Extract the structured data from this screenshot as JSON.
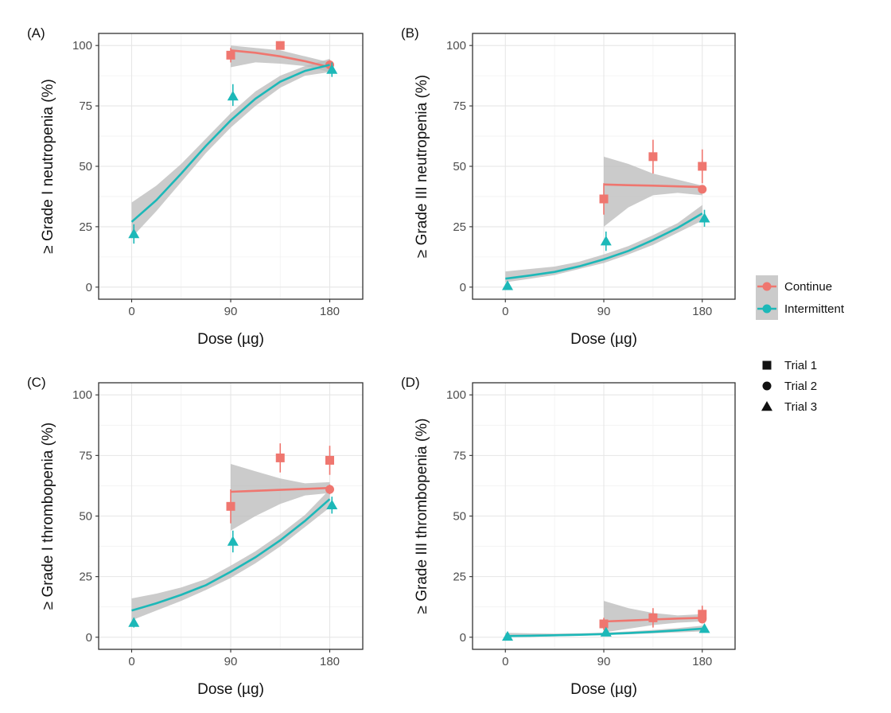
{
  "colors": {
    "continue": "#ef766f",
    "intermittent": "#1cb8b8",
    "ribbon": "#b9b9b9"
  },
  "legend": {
    "group_items": [
      {
        "label": "Continue",
        "key": "continue"
      },
      {
        "label": "Intermittent",
        "key": "intermittent"
      }
    ],
    "shape_items": [
      {
        "label": "Trial 1",
        "shape": "square"
      },
      {
        "label": "Trial 2",
        "shape": "circle"
      },
      {
        "label": "Trial 3",
        "shape": "triangle"
      }
    ]
  },
  "chart_data": [
    {
      "type": "scatter",
      "panel": "(A)",
      "xlabel": "Dose (µg)",
      "ylabel": "≥ Grade I neutropenia (%)",
      "x_ticks": [
        0,
        90,
        180
      ],
      "y_ticks": [
        0,
        25,
        50,
        75,
        100
      ],
      "xlim": [
        -30,
        210
      ],
      "ylim": [
        -5,
        105
      ],
      "series": [
        {
          "name": "Continue",
          "color_key": "continue",
          "fit": {
            "x": [
              90,
              112.5,
              135,
              157.5,
              180
            ],
            "y": [
              98,
              97,
              95.5,
              93.5,
              91
            ]
          },
          "ribbon": {
            "lower": [
              91,
              93,
              92.5,
              91.5,
              89
            ],
            "upper": [
              100,
              99,
              98,
              95.5,
              93
            ]
          },
          "points": [
            {
              "x": 90,
              "y": 96,
              "shape": "square",
              "err": [
                93,
                99
              ]
            },
            {
              "x": 135,
              "y": 100,
              "shape": "square",
              "err": [
                99,
                100
              ]
            },
            {
              "x": 180,
              "y": 92,
              "shape": "circle",
              "err": [
                90,
                94
              ]
            }
          ]
        },
        {
          "name": "Intermittent",
          "color_key": "intermittent",
          "fit": {
            "x": [
              0,
              22.5,
              45,
              67.5,
              90,
              112.5,
              135,
              157.5,
              180
            ],
            "y": [
              27,
              36,
              47,
              58.5,
              69,
              78,
              85,
              89.5,
              92
            ]
          },
          "ribbon": {
            "lower": [
              20.5,
              31.5,
              43.5,
              55.5,
              66,
              75,
              82.5,
              87.5,
              89
            ],
            "upper": [
              35,
              42,
              51,
              61.5,
              72,
              81,
              87.5,
              91.5,
              94.5
            ]
          },
          "points": [
            {
              "x": 2,
              "y": 22,
              "shape": "triangle",
              "err": [
                18,
                26
              ]
            },
            {
              "x": 92,
              "y": 79,
              "shape": "triangle",
              "err": [
                75,
                84
              ]
            },
            {
              "x": 182,
              "y": 90,
              "shape": "triangle",
              "err": [
                87,
                93
              ]
            }
          ]
        }
      ]
    },
    {
      "type": "scatter",
      "panel": "(B)",
      "xlabel": "Dose (µg)",
      "ylabel": "≥ Grade III neutropenia (%)",
      "x_ticks": [
        0,
        90,
        180
      ],
      "y_ticks": [
        0,
        25,
        50,
        75,
        100
      ],
      "xlim": [
        -30,
        210
      ],
      "ylim": [
        -5,
        105
      ],
      "series": [
        {
          "name": "Continue",
          "color_key": "continue",
          "fit": {
            "x": [
              90,
              112.5,
              135,
              157.5,
              180
            ],
            "y": [
              42.5,
              42.2,
              42,
              41.7,
              41.4
            ]
          },
          "ribbon": {
            "lower": [
              25,
              33,
              38,
              39,
              38
            ],
            "upper": [
              54,
              51,
              47,
              44.5,
              42
            ]
          },
          "points": [
            {
              "x": 90,
              "y": 36.5,
              "shape": "square",
              "err": [
                30,
                43
              ]
            },
            {
              "x": 135,
              "y": 54,
              "shape": "square",
              "err": [
                47,
                61
              ]
            },
            {
              "x": 180,
              "y": 50,
              "shape": "square",
              "err": [
                43,
                57
              ]
            },
            {
              "x": 180,
              "y": 40.5,
              "shape": "circle",
              "err": [
                39,
                42
              ]
            }
          ]
        },
        {
          "name": "Intermittent",
          "color_key": "intermittent",
          "fit": {
            "x": [
              0,
              22.5,
              45,
              67.5,
              90,
              112.5,
              135,
              157.5,
              180
            ],
            "y": [
              3.5,
              4.8,
              6.3,
              8.6,
              11.5,
              15,
              19.5,
              24.5,
              30.5
            ]
          },
          "ribbon": {
            "lower": [
              2,
              3.5,
              5,
              7.5,
              10,
              13.5,
              17.5,
              22.5,
              27.5
            ],
            "upper": [
              6.5,
              7.5,
              8.5,
              10.5,
              13.5,
              17,
              21.5,
              26.5,
              34
            ]
          },
          "points": [
            {
              "x": 2,
              "y": 0.5,
              "shape": "triangle",
              "err": [
                0,
                2
              ]
            },
            {
              "x": 92,
              "y": 19,
              "shape": "triangle",
              "err": [
                15,
                23
              ]
            },
            {
              "x": 182,
              "y": 28.5,
              "shape": "triangle",
              "err": [
                25,
                32
              ]
            }
          ]
        }
      ]
    },
    {
      "type": "scatter",
      "panel": "(C)",
      "xlabel": "Dose (µg)",
      "ylabel": "≥ Grade I thrombopenia (%)",
      "x_ticks": [
        0,
        90,
        180
      ],
      "y_ticks": [
        0,
        25,
        50,
        75,
        100
      ],
      "xlim": [
        -30,
        210
      ],
      "ylim": [
        -5,
        105
      ],
      "series": [
        {
          "name": "Continue",
          "color_key": "continue",
          "fit": {
            "x": [
              90,
              112.5,
              135,
              157.5,
              180
            ],
            "y": [
              60,
              60.4,
              60.8,
              61.2,
              61.6
            ]
          },
          "ribbon": {
            "lower": [
              44,
              50,
              55,
              58.5,
              59.5
            ],
            "upper": [
              71.5,
              68.5,
              65.5,
              63.5,
              64
            ]
          },
          "points": [
            {
              "x": 90,
              "y": 54,
              "shape": "square",
              "err": [
                47,
                61
              ]
            },
            {
              "x": 135,
              "y": 74,
              "shape": "square",
              "err": [
                68,
                80
              ]
            },
            {
              "x": 180,
              "y": 73,
              "shape": "square",
              "err": [
                67,
                79
              ]
            },
            {
              "x": 180,
              "y": 61,
              "shape": "circle",
              "err": [
                59,
                63
              ]
            }
          ]
        },
        {
          "name": "Intermittent",
          "color_key": "intermittent",
          "fit": {
            "x": [
              0,
              22.5,
              45,
              67.5,
              90,
              112.5,
              135,
              157.5,
              180
            ],
            "y": [
              11,
              14,
              17.5,
              21.5,
              27,
              33,
              40,
              48,
              57
            ]
          },
          "ribbon": {
            "lower": [
              7,
              11,
              15,
              19.5,
              24.5,
              30.5,
              37.5,
              45.5,
              53.5
            ],
            "upper": [
              16,
              18,
              20.5,
              24,
              29.5,
              35.5,
              42.5,
              50.5,
              61
            ]
          },
          "points": [
            {
              "x": 2,
              "y": 6,
              "shape": "triangle",
              "err": [
                4,
                8
              ]
            },
            {
              "x": 92,
              "y": 39.5,
              "shape": "triangle",
              "err": [
                35,
                44
              ]
            },
            {
              "x": 182,
              "y": 54.5,
              "shape": "triangle",
              "err": [
                51,
                58
              ]
            }
          ]
        }
      ]
    },
    {
      "type": "scatter",
      "panel": "(D)",
      "xlabel": "Dose (µg)",
      "ylabel": "≥ Grade III thrombopenia (%)",
      "x_ticks": [
        0,
        90,
        180
      ],
      "y_ticks": [
        0,
        25,
        50,
        75,
        100
      ],
      "xlim": [
        -30,
        210
      ],
      "ylim": [
        -5,
        105
      ],
      "series": [
        {
          "name": "Continue",
          "color_key": "continue",
          "fit": {
            "x": [
              90,
              112.5,
              135,
              157.5,
              180
            ],
            "y": [
              6.5,
              6.9,
              7.3,
              7.7,
              8
            ]
          },
          "ribbon": {
            "lower": [
              2,
              3.5,
              5,
              6,
              6.5
            ],
            "upper": [
              15,
              12,
              10,
              9,
              9.5
            ]
          },
          "points": [
            {
              "x": 90,
              "y": 5.5,
              "shape": "square",
              "err": [
                3,
                8
              ]
            },
            {
              "x": 135,
              "y": 8,
              "shape": "square",
              "err": [
                4,
                12
              ]
            },
            {
              "x": 180,
              "y": 9.5,
              "shape": "square",
              "err": [
                6,
                13
              ]
            },
            {
              "x": 180,
              "y": 7.5,
              "shape": "circle",
              "err": [
                6,
                9
              ]
            }
          ]
        },
        {
          "name": "Intermittent",
          "color_key": "intermittent",
          "fit": {
            "x": [
              0,
              22.5,
              45,
              67.5,
              90,
              112.5,
              135,
              157.5,
              180
            ],
            "y": [
              0.5,
              0.6,
              0.8,
              1,
              1.3,
              1.7,
              2.2,
              2.8,
              3.5
            ]
          },
          "ribbon": {
            "lower": [
              0,
              0.2,
              0.4,
              0.6,
              0.9,
              1.2,
              1.6,
              2,
              2.4
            ],
            "upper": [
              1.8,
              1.6,
              1.5,
              1.6,
              1.9,
              2.4,
              3,
              3.8,
              4.8
            ]
          },
          "points": [
            {
              "x": 2,
              "y": 0.3,
              "shape": "triangle",
              "err": [
                0,
                1
              ]
            },
            {
              "x": 92,
              "y": 2,
              "shape": "triangle",
              "err": [
                1,
                3
              ]
            },
            {
              "x": 182,
              "y": 3.5,
              "shape": "triangle",
              "err": [
                2,
                5
              ]
            }
          ]
        }
      ]
    }
  ]
}
